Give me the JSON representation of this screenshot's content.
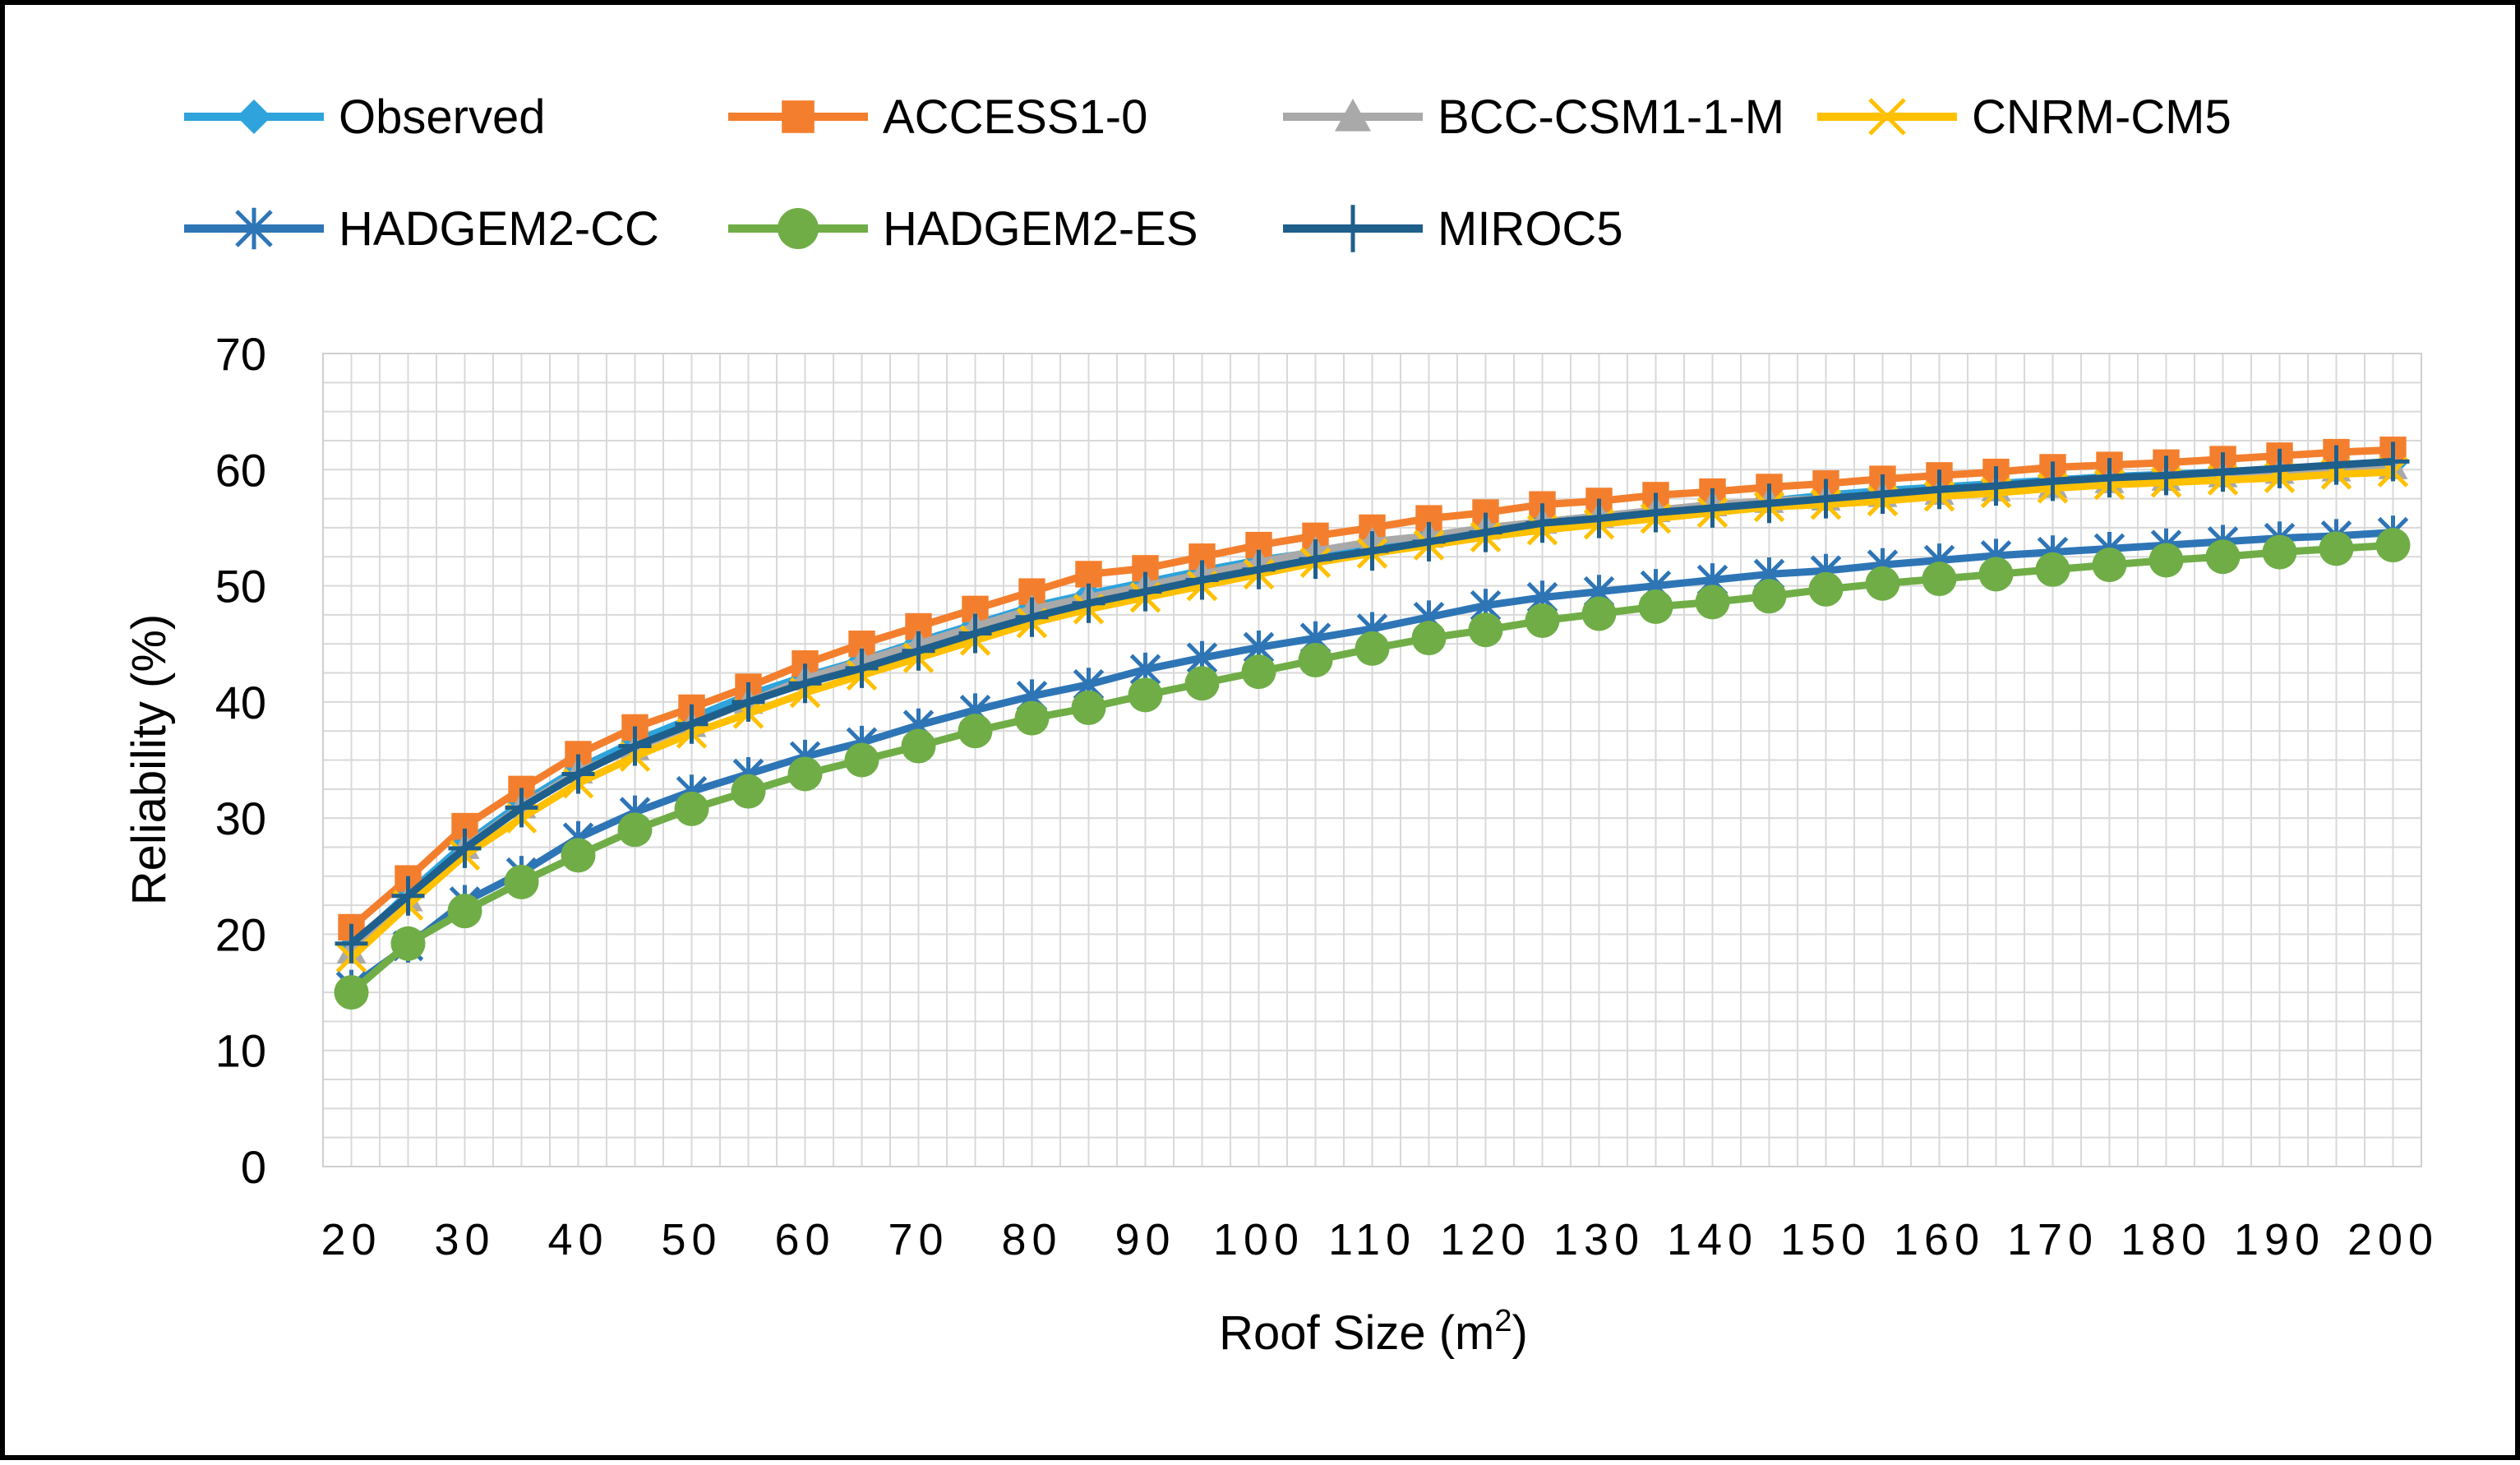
{
  "chart_data": {
    "type": "line",
    "title": "",
    "xlabel": "Roof Size (m",
    "xlabel_sup": "2",
    "xlabel_end": ")",
    "ylabel": "Reliability (%)",
    "ylim": [
      0,
      70
    ],
    "y_ticks": [
      0,
      10,
      20,
      30,
      40,
      50,
      60,
      70
    ],
    "x": [
      20,
      25,
      30,
      35,
      40,
      45,
      50,
      55,
      60,
      65,
      70,
      75,
      80,
      85,
      90,
      95,
      100,
      105,
      110,
      115,
      120,
      125,
      130,
      135,
      140,
      145,
      150,
      155,
      160,
      165,
      170,
      175,
      180,
      185,
      190,
      195,
      200
    ],
    "x_tick_labels": [
      "20",
      "30",
      "40",
      "50",
      "60",
      "70",
      "80",
      "90",
      "100",
      "110",
      "120",
      "130",
      "140",
      "150",
      "160",
      "170",
      "180",
      "190",
      "200"
    ],
    "grid": true,
    "legend_position": "top",
    "series": [
      {
        "name": "Observed",
        "color": "#2ea3dc",
        "marker": "diamond",
        "values": [
          19.0,
          23.5,
          27.8,
          31.3,
          34.3,
          36.6,
          38.6,
          40.6,
          42.2,
          43.6,
          45.2,
          46.7,
          48.2,
          49.3,
          50.3,
          51.3,
          52.2,
          52.9,
          53.5,
          54.2,
          54.8,
          55.5,
          56.0,
          56.4,
          56.9,
          57.3,
          57.8,
          58.2,
          58.5,
          58.8,
          59.1,
          59.4,
          59.6,
          59.8,
          60.1,
          60.3,
          60.5
        ]
      },
      {
        "name": "ACCESS1-0",
        "color": "#f37f2e",
        "marker": "square",
        "values": [
          20.6,
          24.8,
          29.3,
          32.5,
          35.5,
          37.8,
          39.5,
          41.3,
          43.3,
          45.0,
          46.5,
          48.0,
          49.5,
          51.0,
          51.5,
          52.5,
          53.5,
          54.3,
          55.0,
          55.8,
          56.3,
          57.0,
          57.3,
          57.8,
          58.1,
          58.5,
          58.8,
          59.2,
          59.5,
          59.8,
          60.2,
          60.4,
          60.6,
          60.9,
          61.2,
          61.5,
          61.7
        ]
      },
      {
        "name": "BCC-CSM1-1-M",
        "color": "#a9a9a9",
        "marker": "triangle",
        "values": [
          18.5,
          23.0,
          27.5,
          31.0,
          34.0,
          36.0,
          38.0,
          40.0,
          42.0,
          43.5,
          45.0,
          46.5,
          48.0,
          49.0,
          50.0,
          51.0,
          52.0,
          53.0,
          53.8,
          54.3,
          55.0,
          55.5,
          56.0,
          56.5,
          57.0,
          57.3,
          57.5,
          57.8,
          58.0,
          58.3,
          58.6,
          59.0,
          59.2,
          59.5,
          59.8,
          60.0,
          60.2
        ]
      },
      {
        "name": "CNRM-CM5",
        "color": "#ffc000",
        "marker": "x",
        "values": [
          18.0,
          22.5,
          26.8,
          30.0,
          33.0,
          35.3,
          37.3,
          39.0,
          40.8,
          42.3,
          43.8,
          45.3,
          46.8,
          48.0,
          49.0,
          50.0,
          51.0,
          52.0,
          52.8,
          53.5,
          54.2,
          54.8,
          55.3,
          55.8,
          56.3,
          56.8,
          57.0,
          57.3,
          57.7,
          58.0,
          58.4,
          58.7,
          58.9,
          59.1,
          59.3,
          59.6,
          59.8
        ]
      },
      {
        "name": "HADGEM2-CC",
        "color": "#2e75b6",
        "marker": "asterisk",
        "values": [
          15.5,
          19.0,
          22.8,
          25.3,
          28.3,
          30.5,
          32.3,
          33.8,
          35.3,
          36.5,
          38.0,
          39.3,
          40.5,
          41.5,
          42.8,
          43.8,
          44.7,
          45.5,
          46.3,
          47.3,
          48.3,
          49.0,
          49.5,
          50.0,
          50.5,
          51.0,
          51.3,
          51.8,
          52.2,
          52.6,
          52.9,
          53.2,
          53.5,
          53.8,
          54.1,
          54.3,
          54.6
        ]
      },
      {
        "name": "HADGEM2-ES",
        "color": "#70ad47",
        "marker": "circle",
        "values": [
          15.0,
          19.2,
          22.0,
          24.5,
          26.8,
          29.0,
          30.8,
          32.3,
          33.8,
          35.0,
          36.2,
          37.5,
          38.6,
          39.5,
          40.6,
          41.6,
          42.6,
          43.6,
          44.6,
          45.5,
          46.2,
          47.0,
          47.6,
          48.2,
          48.6,
          49.1,
          49.7,
          50.2,
          50.6,
          51.0,
          51.4,
          51.8,
          52.2,
          52.5,
          52.9,
          53.2,
          53.5
        ]
      },
      {
        "name": "MIROC5",
        "color": "#1f5f8b",
        "marker": "plus",
        "values": [
          19.2,
          23.3,
          27.4,
          30.9,
          33.8,
          36.2,
          38.1,
          40.0,
          41.6,
          42.9,
          44.4,
          45.9,
          47.3,
          48.5,
          49.5,
          50.5,
          51.4,
          52.3,
          53.0,
          53.8,
          54.6,
          55.4,
          55.8,
          56.3,
          56.7,
          57.1,
          57.5,
          57.9,
          58.3,
          58.6,
          59.0,
          59.3,
          59.5,
          59.8,
          60.1,
          60.4,
          60.7
        ]
      }
    ]
  }
}
